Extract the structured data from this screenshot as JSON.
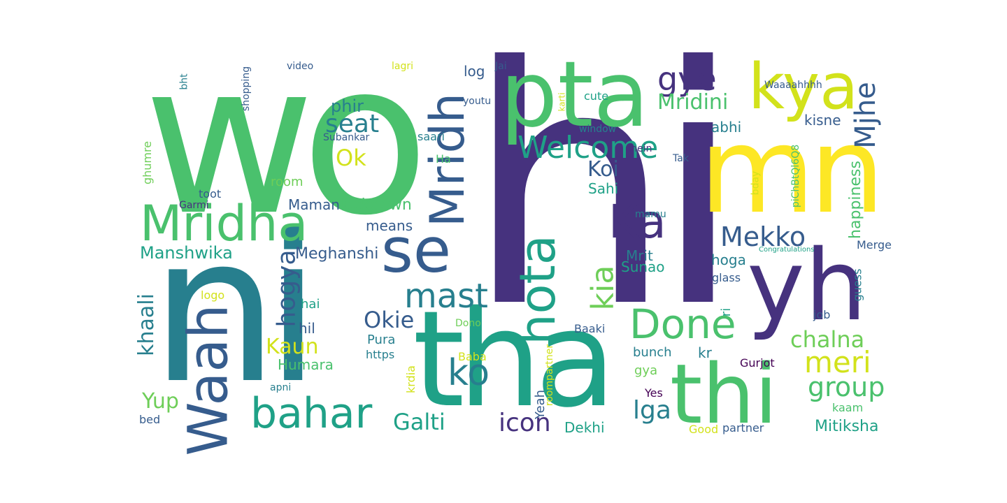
{
  "words": [
    {
      "text": "hi",
      "color": "#46327e"
    },
    {
      "text": "wo",
      "color": "#4ac16d"
    },
    {
      "text": "ni",
      "color": "#277f8e"
    },
    {
      "text": "tha",
      "color": "#1fa187"
    },
    {
      "text": "mn",
      "color": "#fde725"
    },
    {
      "text": "pta",
      "color": "#4ac16d"
    },
    {
      "text": "thi",
      "color": "#4ac16d"
    },
    {
      "text": "yh",
      "color": "#46327e"
    },
    {
      "text": "kya",
      "color": "#d2e21b"
    },
    {
      "text": "se",
      "color": "#365c8d"
    },
    {
      "text": "Mridha",
      "color": "#4ac16d"
    },
    {
      "text": "Waah",
      "color": "#365c8d"
    },
    {
      "text": "hota",
      "color": "#1fa187"
    },
    {
      "text": "Mridh",
      "color": "#365c8d"
    },
    {
      "text": "Ka",
      "color": "#46327e"
    },
    {
      "text": "Done",
      "color": "#4ac16d"
    },
    {
      "text": "bahar",
      "color": "#1fa187"
    },
    {
      "text": "mast",
      "color": "#277f8e"
    },
    {
      "text": "ko",
      "color": "#277f8e"
    },
    {
      "text": "Welcome",
      "color": "#1fa187"
    },
    {
      "text": "gye",
      "color": "#46327e"
    },
    {
      "text": "kia",
      "color": "#6ece58"
    },
    {
      "text": "meri",
      "color": "#d2e21b"
    },
    {
      "text": "group",
      "color": "#4ac16d"
    },
    {
      "text": "Mekko",
      "color": "#365c8d"
    },
    {
      "text": "seat",
      "color": "#277f8e"
    },
    {
      "text": "Mjhe",
      "color": "#365c8d"
    },
    {
      "text": "chalna",
      "color": "#6ece58"
    },
    {
      "text": "hogya",
      "color": "#365c8d"
    },
    {
      "text": "icon",
      "color": "#46327e"
    },
    {
      "text": "Galti",
      "color": "#1fa187"
    },
    {
      "text": "lga",
      "color": "#277f8e"
    },
    {
      "text": "Kaun",
      "color": "#d2e21b"
    },
    {
      "text": "Yup",
      "color": "#6ece58"
    },
    {
      "text": "Okie",
      "color": "#365c8d"
    },
    {
      "text": "Ok",
      "color": "#d2e21b"
    },
    {
      "text": "Koi",
      "color": "#365c8d"
    },
    {
      "text": "Mridini",
      "color": "#4ac16d"
    },
    {
      "text": "khaali",
      "color": "#277f8e"
    },
    {
      "text": "phir",
      "color": "#277f8e"
    },
    {
      "text": "Manshwika",
      "color": "#1fa187"
    },
    {
      "text": "Meghanshi",
      "color": "#365c8d"
    },
    {
      "text": "lockdown",
      "color": "#4ac16d"
    },
    {
      "text": "Mitiksha",
      "color": "#1fa187"
    },
    {
      "text": "happiness",
      "color": "#4ac16d"
    },
    {
      "text": "Humara",
      "color": "#4ac16d"
    },
    {
      "text": "Maman",
      "color": "#365c8d"
    },
    {
      "text": "means",
      "color": "#365c8d"
    },
    {
      "text": "Sunao",
      "color": "#1fa187"
    },
    {
      "text": "hoga",
      "color": "#277f8e"
    },
    {
      "text": "Mrit",
      "color": "#277f8e"
    },
    {
      "text": "Sahi",
      "color": "#1fa187"
    },
    {
      "text": "Dekhi",
      "color": "#1fa187"
    },
    {
      "text": "kisne",
      "color": "#365c8d"
    },
    {
      "text": "abhi",
      "color": "#277f8e"
    },
    {
      "text": "room",
      "color": "#6ece58"
    },
    {
      "text": "bunch",
      "color": "#277f8e"
    },
    {
      "text": "Yeah",
      "color": "#365c8d"
    },
    {
      "text": "Pura",
      "color": "#277f8e"
    },
    {
      "text": "hil",
      "color": "#365c8d"
    },
    {
      "text": "hai",
      "color": "#1fa187"
    },
    {
      "text": "gya",
      "color": "#6ece58"
    },
    {
      "text": "kr",
      "color": "#277f8e"
    },
    {
      "text": "kaam",
      "color": "#4ac16d"
    },
    {
      "text": "Merge",
      "color": "#365c8d"
    },
    {
      "text": "log",
      "color": "#365c8d"
    },
    {
      "text": "phir",
      "color": "#277f8e"
    },
    {
      "text": "glass",
      "color": "#365c8d"
    },
    {
      "text": "ri",
      "color": "#1fa187"
    },
    {
      "text": "https",
      "color": "#277f8e"
    },
    {
      "text": "krdia",
      "color": "#d2e21b"
    },
    {
      "text": "Ha",
      "color": "#4ac16d"
    },
    {
      "text": "bed",
      "color": "#365c8d"
    },
    {
      "text": "Gurjot",
      "color": "#440154"
    },
    {
      "text": "Good",
      "color": "#d2e21b"
    },
    {
      "text": "partner",
      "color": "#365c8d"
    },
    {
      "text": "job",
      "color": "#365c8d"
    },
    {
      "text": "guess",
      "color": "#277f8e"
    },
    {
      "text": "Baba",
      "color": "#d2e21b"
    },
    {
      "text": "Yes",
      "color": "#440154"
    },
    {
      "text": "roompartner",
      "color": "#d2e21b"
    },
    {
      "text": "apni",
      "color": "#277f8e"
    },
    {
      "text": "Baaki",
      "color": "#365c8d"
    },
    {
      "text": "Dono",
      "color": "#6ece58"
    },
    {
      "text": "logo",
      "color": "#d2e21b"
    },
    {
      "text": "ghumre",
      "color": "#6ece58"
    },
    {
      "text": "toot",
      "color": "#365c8d"
    },
    {
      "text": "Garmi",
      "color": "#46327e"
    },
    {
      "text": "Subankar",
      "color": "#365c8d"
    },
    {
      "text": "saari",
      "color": "#277f8e"
    },
    {
      "text": "shein",
      "color": "#46327e"
    },
    {
      "text": "window",
      "color": "#277f8e"
    },
    {
      "text": "Tak",
      "color": "#365c8d"
    },
    {
      "text": "mamu",
      "color": "#277f8e"
    },
    {
      "text": "bday",
      "color": "#d2e21b"
    },
    {
      "text": "piChBtQl6Q8",
      "color": "#4ac16d"
    },
    {
      "text": "Congratulations",
      "color": "#1fa187"
    },
    {
      "text": "karti",
      "color": "#d2e21b"
    },
    {
      "text": "cute",
      "color": "#1fa187"
    },
    {
      "text": "youtu",
      "color": "#365c8d"
    },
    {
      "text": "Waaaahhhh",
      "color": "#365c8d"
    },
    {
      "text": "lagri",
      "color": "#d2e21b"
    },
    {
      "text": "Jai",
      "color": "#365c8d"
    },
    {
      "text": "video",
      "color": "#365c8d"
    },
    {
      "text": "shopping",
      "color": "#365c8d"
    },
    {
      "text": "bht",
      "color": "#277f8e"
    }
  ]
}
